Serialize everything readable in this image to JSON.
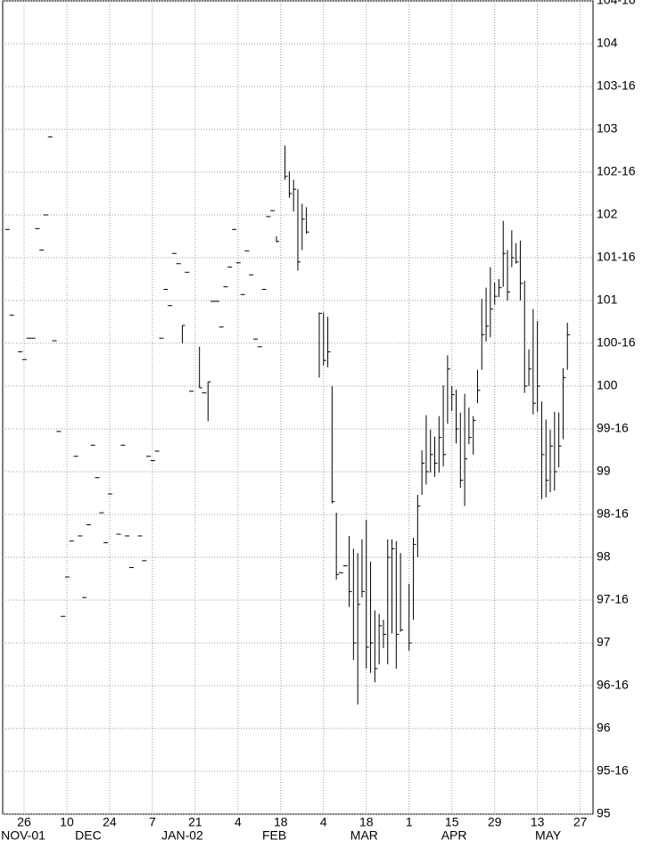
{
  "chart_data": {
    "type": "hlc",
    "x": [
      "2001-11-20",
      "2001-11-21",
      "2001-11-23",
      "2001-11-26",
      "2001-11-27",
      "2001-11-28",
      "2001-11-29",
      "2001-11-30",
      "2001-12-03",
      "2001-12-04",
      "2001-12-05",
      "2001-12-06",
      "2001-12-07",
      "2001-12-10",
      "2001-12-11",
      "2001-12-12",
      "2001-12-13",
      "2001-12-14",
      "2001-12-17",
      "2001-12-18",
      "2001-12-19",
      "2001-12-20",
      "2001-12-21",
      "2001-12-24",
      "2001-12-26",
      "2001-12-27",
      "2001-12-28",
      "2001-12-31",
      "2002-01-02",
      "2002-01-03",
      "2002-01-04",
      "2002-01-07",
      "2002-01-08",
      "2002-01-09",
      "2002-01-10",
      "2002-01-11",
      "2002-01-14",
      "2002-01-15",
      "2002-01-16",
      "2002-01-17",
      "2002-01-18",
      "2002-01-22",
      "2002-01-23",
      "2002-01-24",
      "2002-01-25",
      "2002-01-28",
      "2002-01-29",
      "2002-01-30",
      "2002-01-31",
      "2002-02-01",
      "2002-02-04",
      "2002-02-05",
      "2002-02-06",
      "2002-02-07",
      "2002-02-08",
      "2002-02-11",
      "2002-02-12",
      "2002-02-13",
      "2002-02-14",
      "2002-02-15",
      "2002-02-19",
      "2002-02-20",
      "2002-02-21",
      "2002-02-22",
      "2002-02-25",
      "2002-02-26",
      "2002-03-01",
      "2002-03-04",
      "2002-03-05",
      "2002-03-06",
      "2002-03-07",
      "2002-03-08",
      "2002-03-11",
      "2002-03-12",
      "2002-03-13",
      "2002-03-14",
      "2002-03-15",
      "2002-03-18",
      "2002-03-19",
      "2002-03-20",
      "2002-03-21",
      "2002-03-22",
      "2002-03-25",
      "2002-03-26",
      "2002-03-27",
      "2002-03-28",
      "2002-04-01",
      "2002-04-02",
      "2002-04-03",
      "2002-04-04",
      "2002-04-05",
      "2002-04-08",
      "2002-04-09",
      "2002-04-10",
      "2002-04-11",
      "2002-04-12",
      "2002-04-15",
      "2002-04-16",
      "2002-04-17",
      "2002-04-18",
      "2002-04-19",
      "2002-04-22",
      "2002-04-23",
      "2002-04-24",
      "2002-04-25",
      "2002-04-26",
      "2002-04-29",
      "2002-04-30",
      "2002-05-01",
      "2002-05-02",
      "2002-05-03",
      "2002-05-06",
      "2002-05-07",
      "2002-05-08",
      "2002-05-09",
      "2002-05-10",
      "2002-05-13",
      "2002-05-14",
      "2002-05-15",
      "2002-05-16",
      "2002-05-17",
      "2002-05-20",
      "2002-05-21",
      "2002-05-22"
    ],
    "high": [
      null,
      null,
      null,
      null,
      null,
      null,
      null,
      null,
      null,
      null,
      null,
      null,
      null,
      null,
      null,
      null,
      null,
      null,
      null,
      null,
      null,
      null,
      null,
      null,
      null,
      null,
      null,
      null,
      null,
      null,
      null,
      null,
      null,
      null,
      null,
      null,
      null,
      null,
      100.71,
      null,
      null,
      100.46,
      null,
      100.05,
      null,
      null,
      null,
      null,
      null,
      null,
      null,
      null,
      null,
      null,
      null,
      null,
      null,
      null,
      null,
      101.75,
      102.81,
      102.51,
      102.41,
      102.3,
      102.13,
      102.09,
      100.86,
      100.86,
      100.81,
      100,
      98.52,
      null,
      null,
      98.25,
      98.1,
      98.05,
      98.21,
      98.44,
      97.95,
      97.38,
      97.34,
      97.27,
      98.21,
      98.21,
      98.19,
      98.05,
      97.69,
      98.23,
      98.73,
      99.25,
      99.66,
      99.49,
      99.41,
      99.65,
      100.01,
      100.36,
      100,
      99.96,
      99.69,
      99.91,
      99.75,
      99.65,
      100.19,
      101.02,
      101.15,
      101.39,
      101.21,
      101.25,
      101.93,
      101.59,
      101.82,
      101.67,
      101.7,
      101.23,
      100.43,
      100.9,
      100.76,
      99.82,
      99.61,
      99.49,
      99.7,
      99.69,
      100.21,
      100.74
    ],
    "low": [
      null,
      null,
      null,
      null,
      null,
      null,
      null,
      null,
      null,
      null,
      null,
      null,
      null,
      null,
      null,
      null,
      null,
      null,
      null,
      null,
      null,
      null,
      null,
      null,
      null,
      null,
      null,
      null,
      null,
      null,
      null,
      null,
      null,
      null,
      null,
      null,
      null,
      null,
      100.5,
      null,
      null,
      99.98,
      null,
      99.59,
      null,
      null,
      null,
      null,
      null,
      null,
      null,
      null,
      null,
      null,
      null,
      null,
      null,
      null,
      null,
      101.68,
      102.41,
      102.2,
      102.04,
      101.35,
      101.59,
      101.78,
      100.1,
      100.24,
      100.22,
      98.63,
      97.74,
      null,
      null,
      97.42,
      96.8,
      96.28,
      97.53,
      96.7,
      96.65,
      96.54,
      96.75,
      96.94,
      96.75,
      97.11,
      96.7,
      97.13,
      96.91,
      97.27,
      98,
      98.73,
      98.85,
      98.99,
      98.94,
      98.99,
      99.06,
      99.56,
      99.71,
      99.33,
      98.81,
      98.6,
      99.32,
      99.2,
      99.8,
      100.19,
      100.52,
      100.57,
      100.95,
      101.04,
      101.16,
      101,
      101.39,
      101.43,
      101,
      99.92,
      100,
      99.67,
      99.7,
      98.68,
      98.7,
      98.76,
      98.78,
      99.05,
      99.38,
      100.19
    ],
    "close": [
      101.83,
      100.83,
      100.4,
      100.31,
      100.56,
      100.56,
      101.84,
      101.59,
      102,
      102.91,
      100.53,
      99.47,
      97.31,
      97.77,
      98.19,
      99.18,
      98.25,
      97.53,
      98.38,
      99.31,
      98.93,
      98.52,
      98.17,
      98.74,
      98.27,
      99.31,
      98.25,
      97.88,
      98.25,
      97.96,
      99.18,
      99.13,
      99.24,
      100.56,
      101.13,
      100.94,
      101.55,
      101.43,
      100.71,
      101.33,
      99.94,
      99.98,
      99.92,
      100.05,
      100.99,
      100.99,
      100.69,
      101.16,
      101.39,
      101.83,
      101.44,
      101.07,
      101.58,
      101.3,
      100.55,
      100.46,
      101.13,
      101.98,
      102.05,
      101.69,
      102.45,
      102.25,
      102.3,
      101.45,
      101.95,
      101.8,
      100.85,
      100.3,
      100.4,
      98.65,
      97.8,
      97.82,
      97.9,
      97.6,
      97,
      97.45,
      97.6,
      96.95,
      97,
      96.7,
      97.2,
      97.1,
      98,
      98.1,
      97.1,
      97.15,
      97,
      98.15,
      98.6,
      99.1,
      99,
      99.2,
      99.1,
      99.4,
      99.2,
      100.2,
      99.9,
      99.5,
      98.9,
      99.15,
      99.4,
      99.6,
      99.95,
      100.6,
      100.7,
      100.9,
      101.05,
      101.15,
      101.55,
      101.1,
      101.5,
      101.45,
      101.2,
      100,
      100.2,
      99.8,
      100,
      99.2,
      98.9,
      99.3,
      99,
      99.3,
      100.1,
      100.6
    ],
    "color": "#000000",
    "xlim": [
      "2001-11-19",
      "2002-05-30"
    ],
    "xticks": [
      {
        "value": "2001-11-26",
        "label": "26"
      },
      {
        "value": "2001-12-10",
        "label": "10"
      },
      {
        "value": "2001-12-24",
        "label": "24"
      },
      {
        "value": "2002-01-07",
        "label": "7"
      },
      {
        "value": "2002-01-21",
        "label": "21"
      },
      {
        "value": "2002-02-04",
        "label": "4"
      },
      {
        "value": "2002-02-18",
        "label": "18"
      },
      {
        "value": "2002-03-04",
        "label": "4"
      },
      {
        "value": "2002-03-18",
        "label": "18"
      },
      {
        "value": "2002-04-01",
        "label": "1"
      },
      {
        "value": "2002-04-15",
        "label": "15"
      },
      {
        "value": "2002-04-29",
        "label": "29"
      },
      {
        "value": "2002-05-13",
        "label": "13"
      },
      {
        "value": "2002-05-27",
        "label": "27"
      }
    ],
    "x_month_labels": [
      {
        "value": "2001-11",
        "label": "NOV-01"
      },
      {
        "value": "2001-12",
        "label": "DEC"
      },
      {
        "value": "2002-01",
        "label": "JAN-02"
      },
      {
        "value": "2002-02",
        "label": "FEB"
      },
      {
        "value": "2002-03",
        "label": "MAR"
      },
      {
        "value": "2002-04",
        "label": "APR"
      },
      {
        "value": "2002-05",
        "label": "MAY"
      }
    ],
    "ylim": [
      95,
      104.5
    ],
    "yticks": [
      95,
      {
        "value": 95.5,
        "label": "95-16"
      },
      96,
      {
        "value": 96.5,
        "label": "96-16"
      },
      97,
      {
        "value": 97.5,
        "label": "97-16"
      },
      98,
      {
        "value": 98.5,
        "label": "98-16"
      },
      99,
      {
        "value": 99.5,
        "label": "99-16"
      },
      100,
      {
        "value": 100.5,
        "label": "100-16"
      },
      101,
      {
        "value": 101.5,
        "label": "101-16"
      },
      102,
      {
        "value": 102.5,
        "label": "102-16"
      },
      103,
      {
        "value": 103.5,
        "label": "103-16"
      },
      104,
      {
        "value": 104.5,
        "label": "104-16"
      }
    ],
    "grid": true
  }
}
